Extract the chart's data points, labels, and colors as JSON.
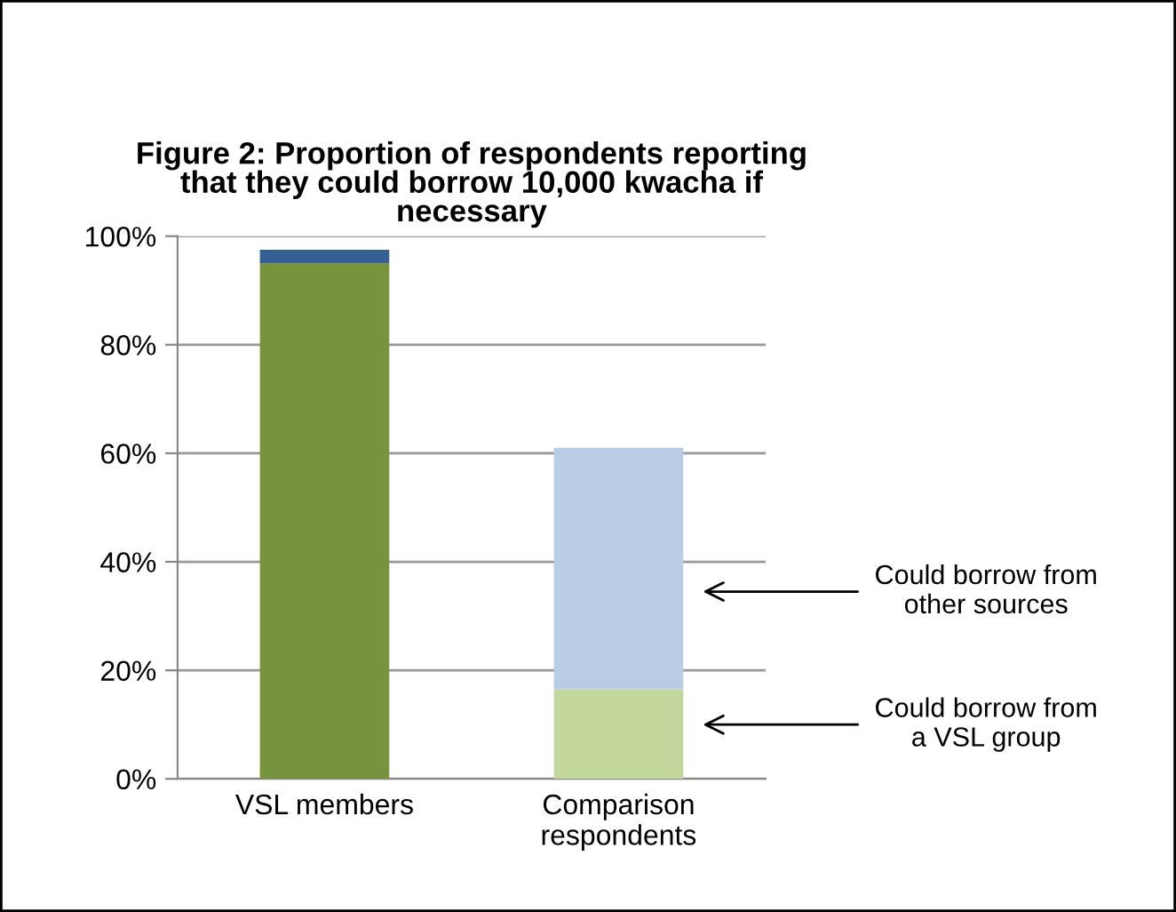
{
  "chart_data": {
    "type": "bar",
    "stacked": true,
    "title": "Figure 2: Proportion of respondents reporting\nthat they could borrow 10,000 kwacha if\nnecessary",
    "categories": [
      "VSL members",
      "Comparison\nrespondents"
    ],
    "series": [
      {
        "colors": [
          "#77933c",
          "#c3d69b"
        ],
        "values": [
          95,
          16.5
        ]
      },
      {
        "colors": [
          "#376092",
          "#b9cde5"
        ],
        "values": [
          2.5,
          44.5
        ]
      }
    ],
    "ylim": [
      0,
      100
    ],
    "yticks": [
      {
        "value": 0,
        "label": "0%"
      },
      {
        "value": 20,
        "label": "20%"
      },
      {
        "value": 40,
        "label": "40%"
      },
      {
        "value": 60,
        "label": "60%"
      },
      {
        "value": 80,
        "label": "80%"
      },
      {
        "value": 100,
        "label": "100%"
      }
    ],
    "grid": "y",
    "annotations": [
      "Could borrow from\nother sources",
      "Could borrow from\na VSL group"
    ]
  }
}
